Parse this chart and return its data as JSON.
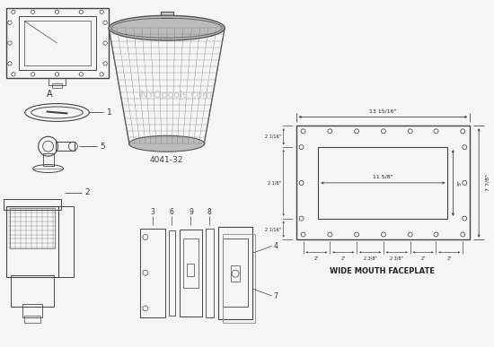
{
  "bg_color": "#f5f5f5",
  "line_color": "#444444",
  "dim_color": "#222222",
  "label_A": "A",
  "label_4041": "4041-32",
  "label_wide": "WIDE MOUTH FACEPLATE",
  "watermark": "INYOpools.com",
  "dim_top": "13 15/16\"",
  "dim_inner_w": "11 5/8\"",
  "dim_inner_h": "5\"",
  "dim_outer_h": "7 7/8\"",
  "dim_left_labels": [
    "2 1/16\"",
    "2 1/8\"",
    "2 1/16\""
  ],
  "dim_bottom": [
    "2\"",
    "2\"",
    "2 3/8\"",
    "2 3/8\"",
    "2\"",
    "2\""
  ],
  "basket_color": "#aaaaaa",
  "part_nums": [
    "1",
    "2",
    "3",
    "4",
    "5",
    "6",
    "7",
    "8",
    "9"
  ]
}
